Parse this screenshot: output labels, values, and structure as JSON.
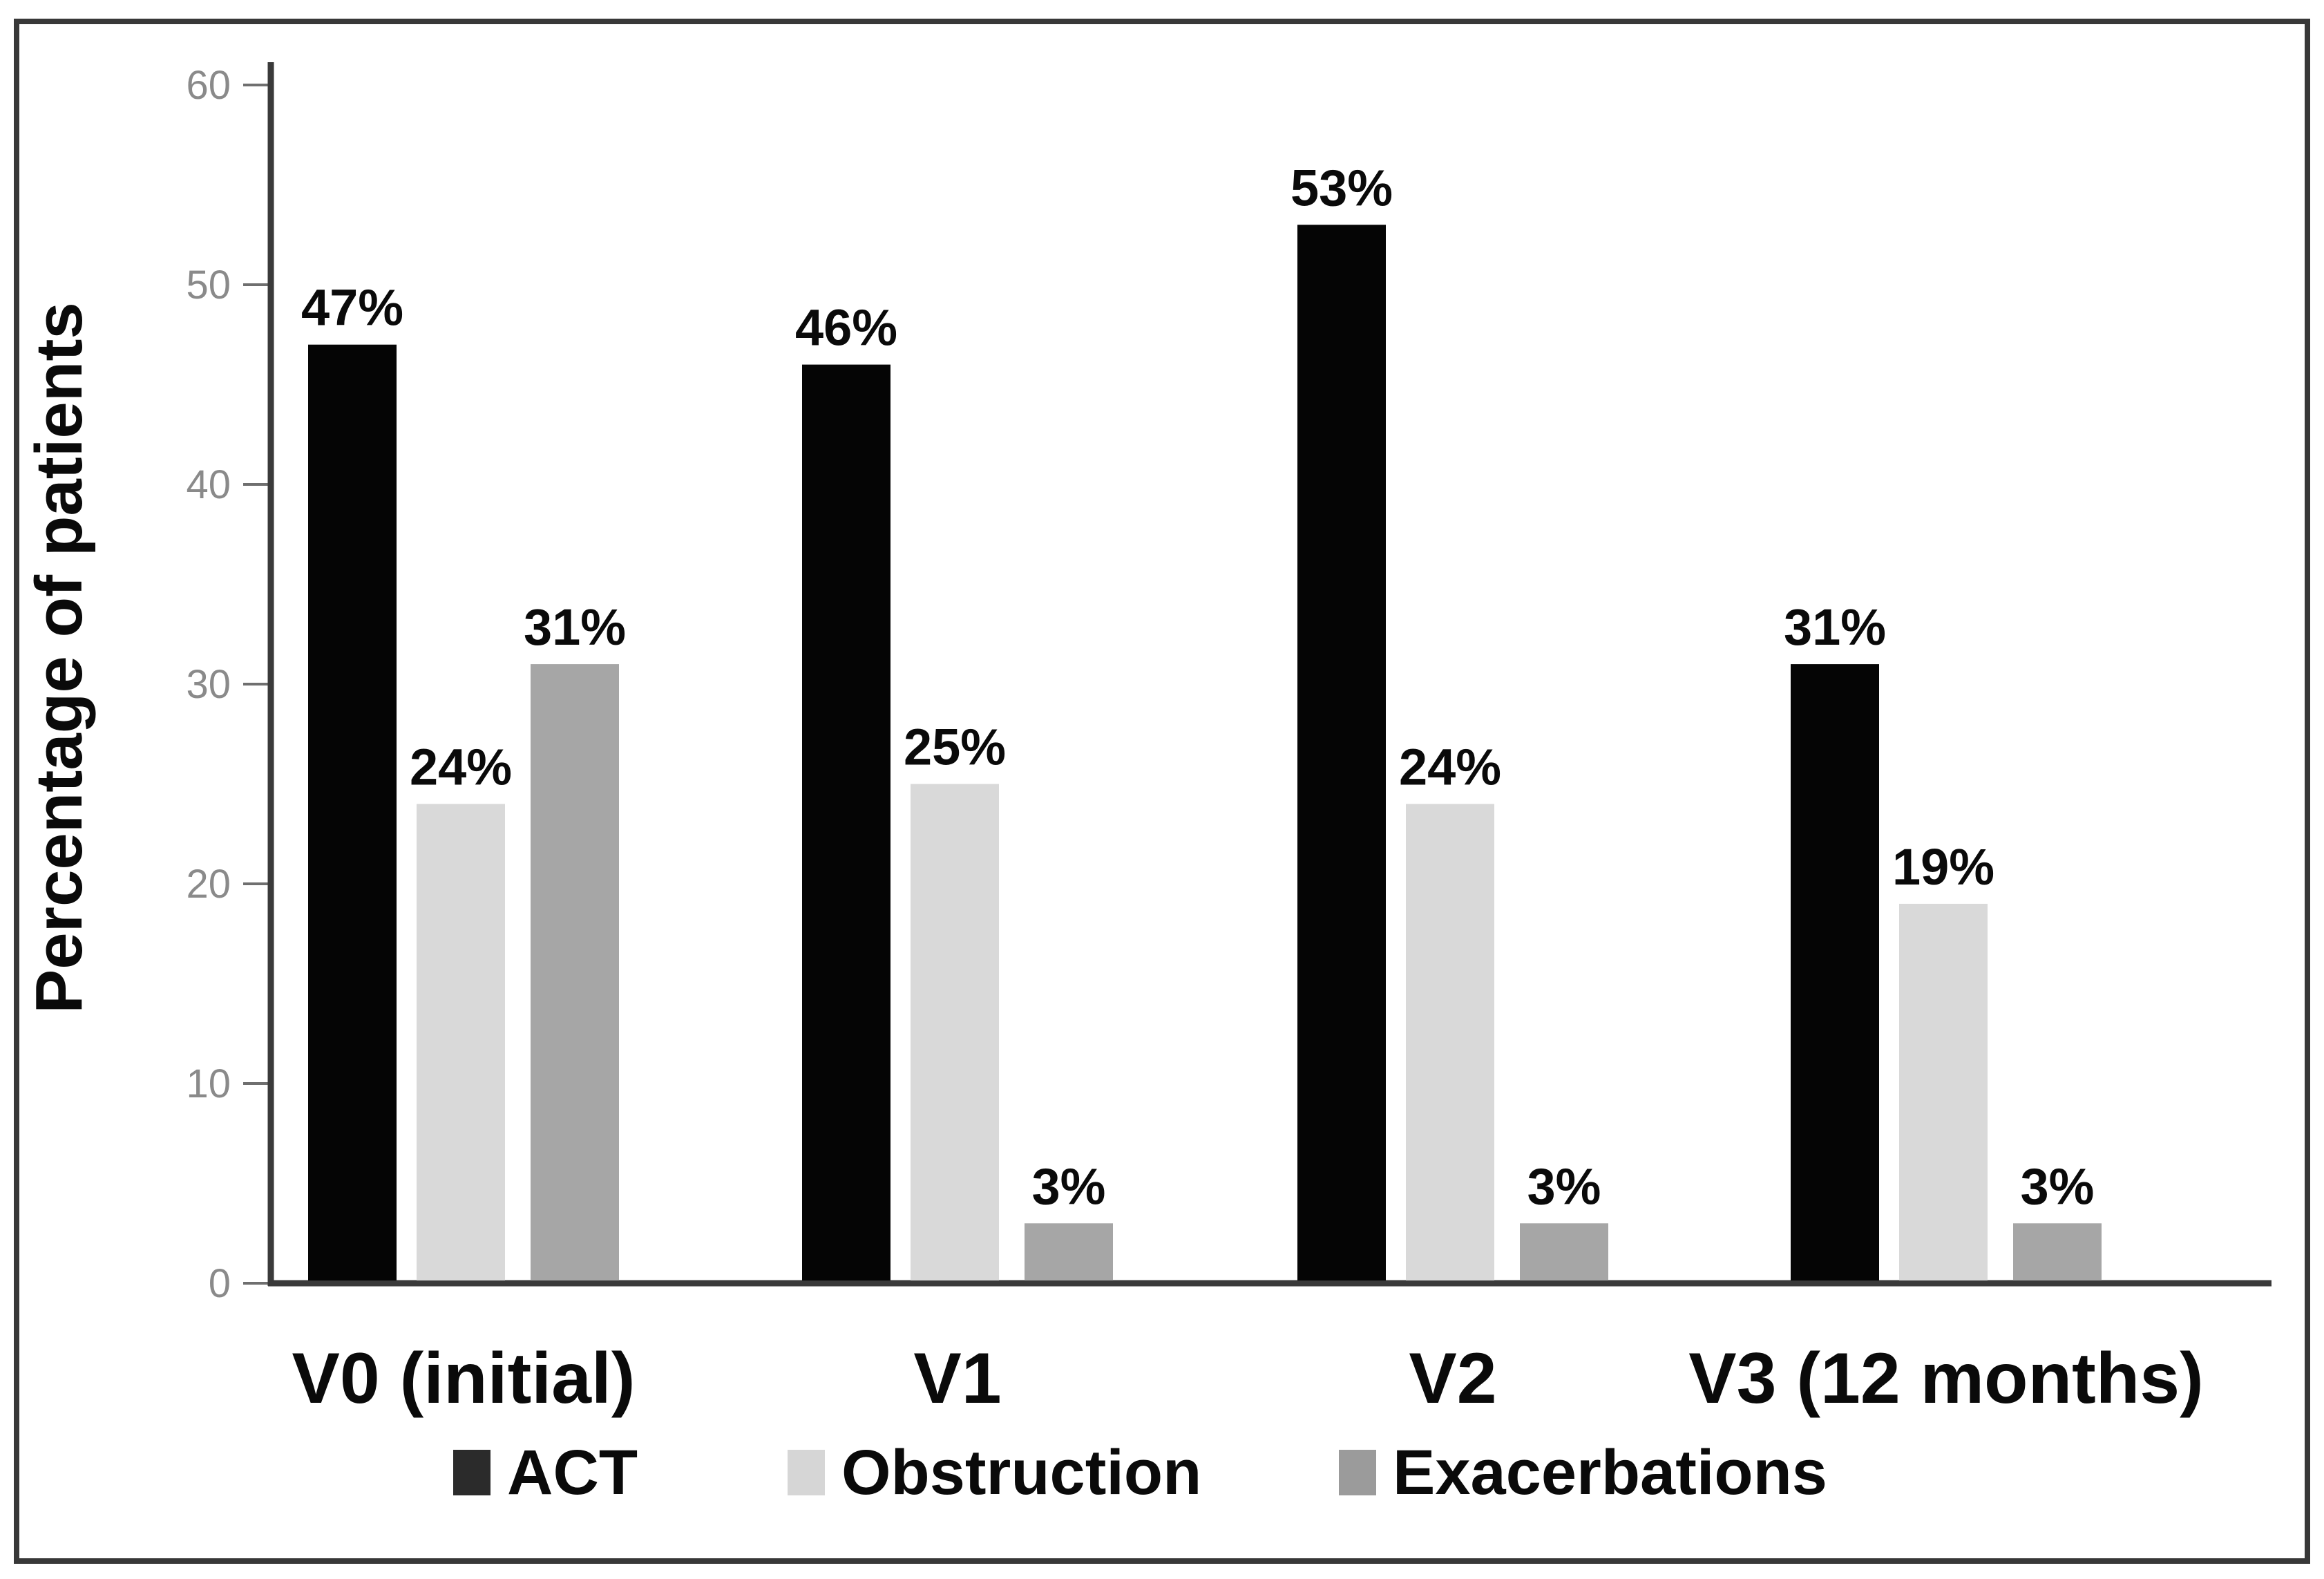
{
  "figure": {
    "ylabel": "Percentage of patients"
  },
  "chart_data": {
    "type": "bar",
    "title": "",
    "xlabel": "",
    "ylabel": "Percentage of patients",
    "categories": [
      "V0  (initial)",
      "V1",
      "V2",
      "V3  (12 months)"
    ],
    "series": [
      {
        "name": "ACT",
        "color": "#050505",
        "legend_color": "#2b2b2b",
        "values": [
          47,
          46,
          53,
          31
        ]
      },
      {
        "name": "Obstruction",
        "color": "#d9d9d9",
        "legend_color": "#d6d6d6",
        "values": [
          24,
          25,
          24,
          19
        ]
      },
      {
        "name": "Exacerbations",
        "color": "#a6a6a6",
        "legend_color": "#9b9b9b",
        "values": [
          31,
          3,
          3,
          3
        ]
      }
    ],
    "value_suffix": "%",
    "ylim": [
      0,
      60
    ],
    "yticks": [
      0,
      10,
      20,
      30,
      40,
      50,
      60
    ],
    "grid": false,
    "legend_position": "bottom",
    "colors": {
      "border": "#383838",
      "axis": "#3a3a3a",
      "tick": "#6f6f6f",
      "tick_text": "#8a8a8a",
      "value_text": "#0a0a0a"
    }
  }
}
